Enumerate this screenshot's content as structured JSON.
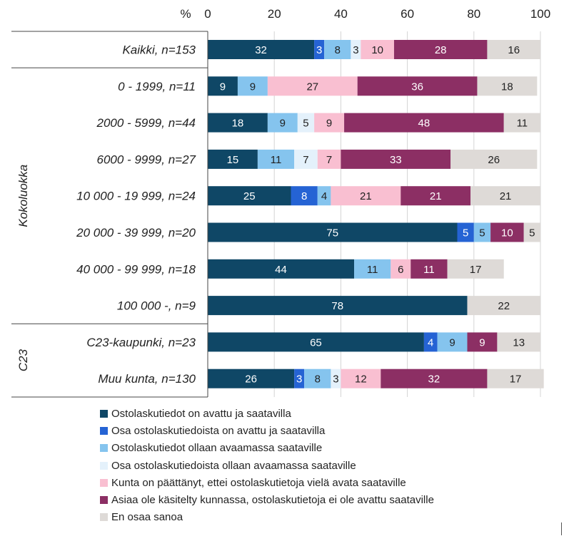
{
  "chart_data": {
    "type": "bar",
    "orientation": "horizontal",
    "stacked": true,
    "axis_unit_label": "%",
    "xlim": [
      0,
      100
    ],
    "xticks": [
      "0",
      "20",
      "40",
      "60",
      "80",
      "100"
    ],
    "grid": true,
    "legend_position": "bottom",
    "categories": [
      "Kaikki, n=153",
      "0 - 1999, n=11",
      "2000 - 5999, n=44",
      "6000 - 9999, n=27",
      "10 000 - 19 999, n=24",
      "20 000 - 39 999, n=20",
      "40 000 - 99 999, n=18",
      "100 000 -, n=9",
      "C23-kaupunki, n=23",
      "Muu kunta, n=130"
    ],
    "groups": [
      {
        "label": "Kokoluokka",
        "first": 1,
        "last": 7
      },
      {
        "label": "C23",
        "first": 8,
        "last": 9
      }
    ],
    "series": [
      {
        "name": "Ostolaskutiedot on avattu ja saatavilla",
        "color": "#0f4766",
        "label_color": "#ffffff",
        "values": [
          32,
          9,
          18,
          15,
          25,
          75,
          44,
          78,
          65,
          26
        ]
      },
      {
        "name": "Osa ostolaskutiedoista on avattu ja saatavilla",
        "color": "#2563d4",
        "label_color": "#ffffff",
        "values": [
          3,
          0,
          0,
          0,
          8,
          5,
          0,
          0,
          4,
          3
        ]
      },
      {
        "name": "Ostolaskutiedot ollaan avaamassa saataville",
        "color": "#85c4ee",
        "label_color": "#222222",
        "values": [
          8,
          9,
          9,
          11,
          4,
          5,
          11,
          0,
          9,
          8
        ]
      },
      {
        "name": "Osa ostolaskutiedoista ollaan avaamassa saataville",
        "color": "#e4f1fb",
        "label_color": "#222222",
        "values": [
          3,
          0,
          5,
          7,
          0,
          0,
          0,
          0,
          0,
          3
        ]
      },
      {
        "name": "Kunta on päättänyt, ettei ostolaskutietoja vielä avata saataville",
        "color": "#f9bfd1",
        "label_color": "#222222",
        "values": [
          10,
          27,
          9,
          7,
          21,
          0,
          6,
          0,
          0,
          12
        ]
      },
      {
        "name": "Asiaa ole käsitelty kunnassa, ostolaskutietoja ei ole avattu saataville",
        "color": "#8c2f64",
        "label_color": "#ffffff",
        "values": [
          28,
          36,
          48,
          33,
          21,
          10,
          11,
          0,
          9,
          32
        ]
      },
      {
        "name": "En osaa sanoa",
        "color": "#dedad7",
        "label_color": "#222222",
        "values": [
          16,
          18,
          11,
          26,
          21,
          5,
          17,
          22,
          13,
          17
        ]
      }
    ]
  }
}
